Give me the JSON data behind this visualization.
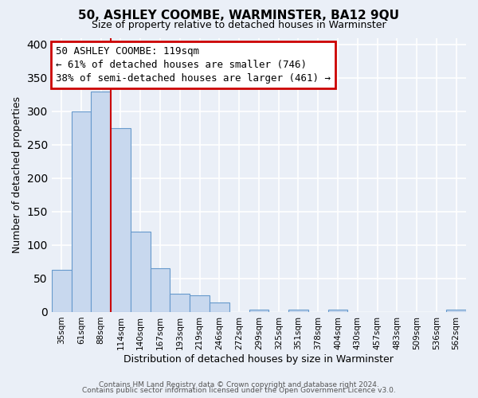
{
  "title": "50, ASHLEY COOMBE, WARMINSTER, BA12 9QU",
  "subtitle": "Size of property relative to detached houses in Warminster",
  "xlabel": "Distribution of detached houses by size in Warminster",
  "ylabel": "Number of detached properties",
  "bar_labels": [
    "35sqm",
    "61sqm",
    "88sqm",
    "114sqm",
    "140sqm",
    "167sqm",
    "193sqm",
    "219sqm",
    "246sqm",
    "272sqm",
    "299sqm",
    "325sqm",
    "351sqm",
    "378sqm",
    "404sqm",
    "430sqm",
    "457sqm",
    "483sqm",
    "509sqm",
    "536sqm",
    "562sqm"
  ],
  "bar_heights": [
    63,
    300,
    330,
    275,
    120,
    65,
    27,
    25,
    14,
    0,
    3,
    0,
    3,
    0,
    3,
    0,
    0,
    0,
    0,
    0,
    3
  ],
  "bar_color": "#c8d8ee",
  "bar_edge_color": "#6699cc",
  "property_line_x": 2.5,
  "annotation_line1": "50 ASHLEY COOMBE: 119sqm",
  "annotation_line2": "← 61% of detached houses are smaller (746)",
  "annotation_line3": "38% of semi-detached houses are larger (461) →",
  "annotation_box_color": "#ffffff",
  "annotation_box_edge_color": "#cc0000",
  "vline_color": "#cc0000",
  "ylim": [
    0,
    410
  ],
  "yticks": [
    0,
    50,
    100,
    150,
    200,
    250,
    300,
    350,
    400
  ],
  "bg_color": "#eaeff7",
  "plot_bg_color": "#eaeff7",
  "grid_color": "#ffffff",
  "footer_line1": "Contains HM Land Registry data © Crown copyright and database right 2024.",
  "footer_line2": "Contains public sector information licensed under the Open Government Licence v3.0."
}
